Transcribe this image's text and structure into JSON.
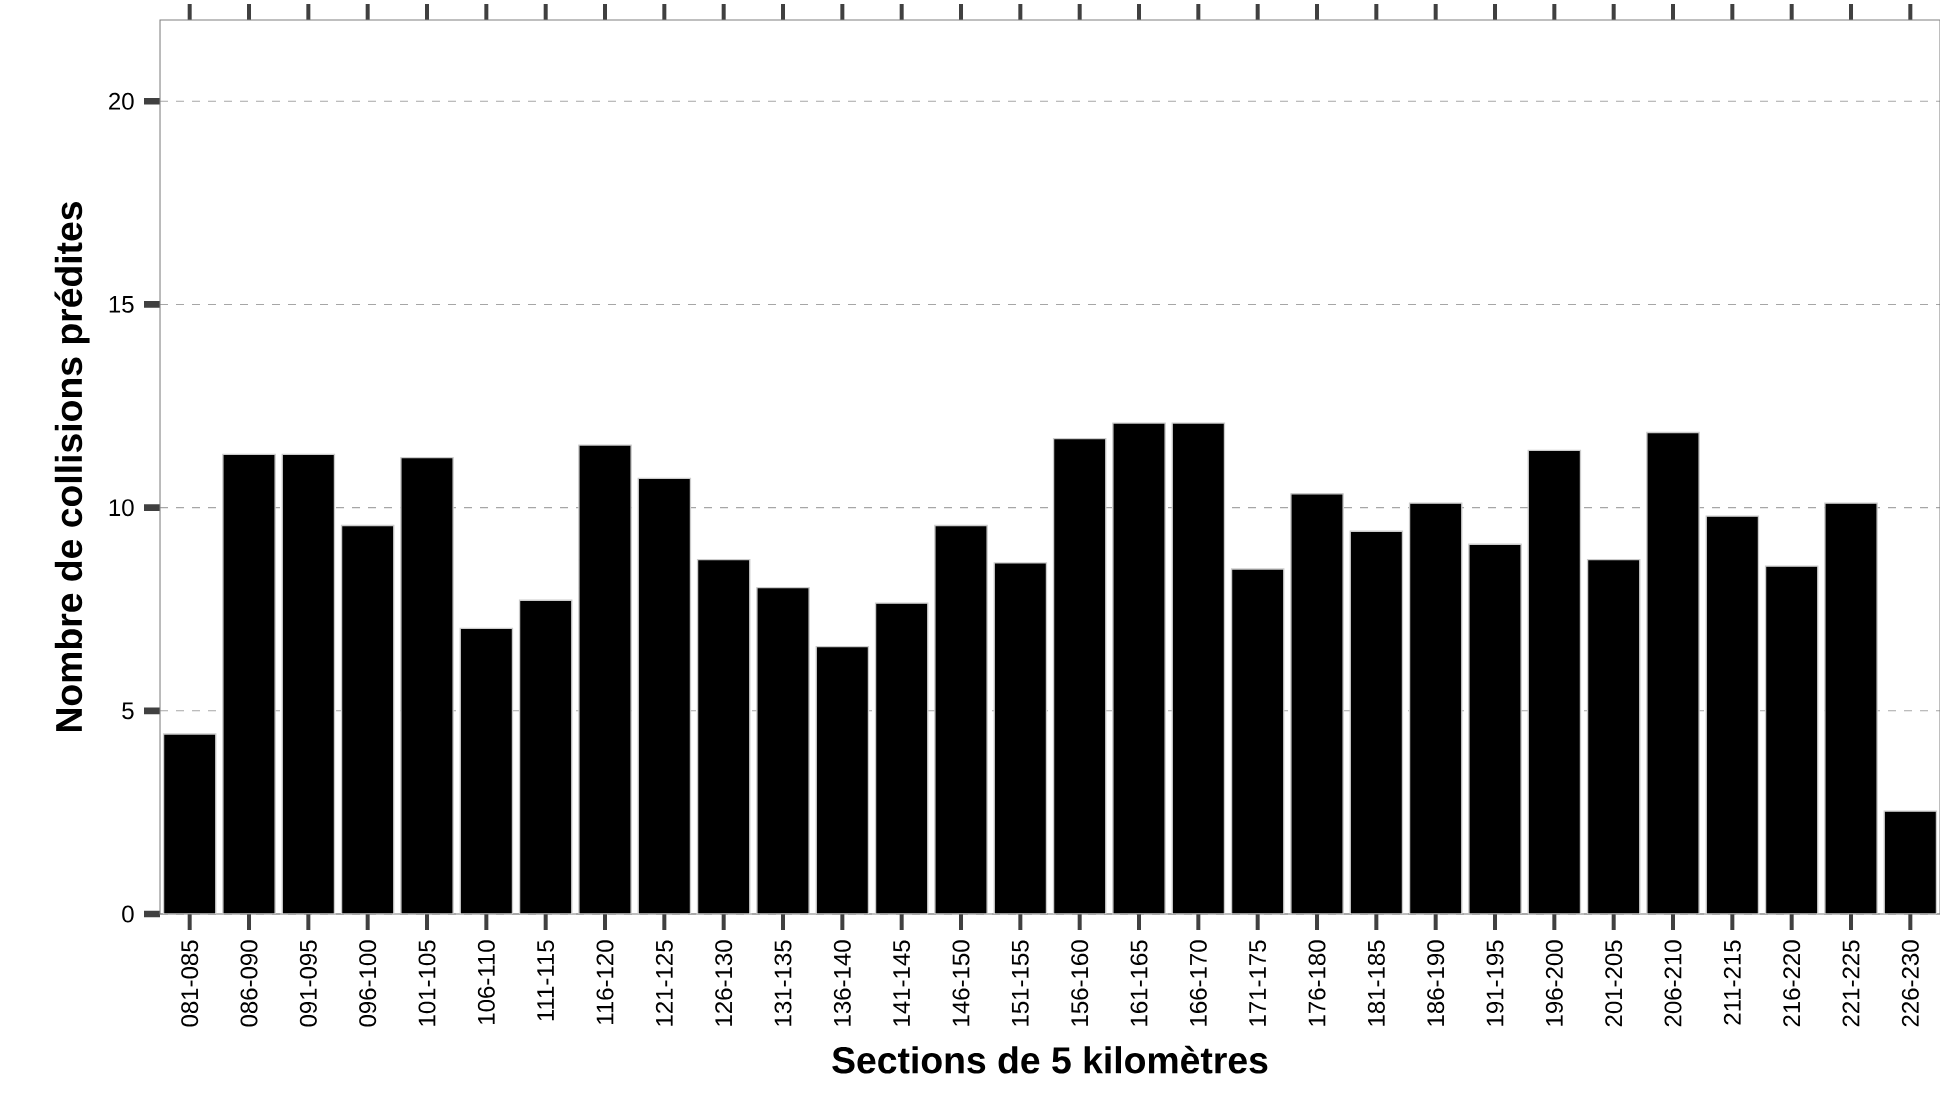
{
  "chart_data": {
    "type": "bar",
    "xlabel": "Sections de 5 kilomètres",
    "ylabel": "Nombre de collisions prédites",
    "categories": [
      "081-085",
      "086-090",
      "091-095",
      "096-100",
      "101-105",
      "106-110",
      "111-115",
      "116-120",
      "121-125",
      "126-130",
      "131-135",
      "136-140",
      "141-145",
      "146-150",
      "151-155",
      "156-160",
      "161-165",
      "166-170",
      "171-175",
      "176-180",
      "181-185",
      "186-190",
      "191-195",
      "196-200",
      "201-205",
      "206-210",
      "211-215",
      "216-220",
      "221-225",
      "226-230"
    ],
    "values": [
      4.43,
      11.31,
      11.31,
      9.56,
      11.23,
      7.03,
      7.72,
      11.54,
      10.72,
      8.72,
      8.03,
      6.58,
      7.65,
      9.56,
      8.64,
      11.7,
      12.08,
      12.08,
      8.49,
      10.34,
      9.42,
      10.11,
      9.1,
      11.41,
      8.72,
      11.85,
      9.79,
      8.56,
      10.11,
      2.53
    ],
    "color": "#000000",
    "ylim": [
      0,
      22
    ],
    "yticks": [
      0,
      5,
      10,
      15,
      20
    ],
    "grid": "y"
  }
}
